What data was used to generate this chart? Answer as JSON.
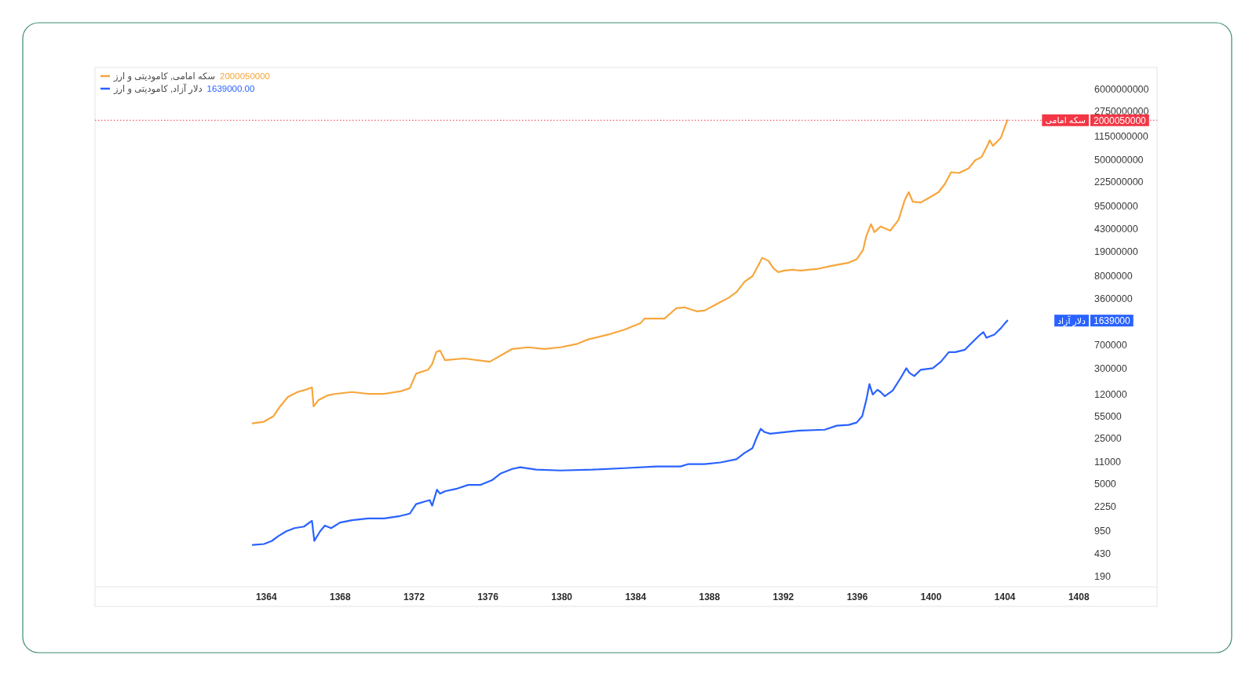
{
  "chart_data": {
    "type": "line",
    "log": "y",
    "legend": "top left",
    "xlim": [
      1354.72,
      1412.24
    ],
    "ylim": [
      130,
      13000000000
    ],
    "xticks": [
      1364,
      1368,
      1372,
      1376,
      1380,
      1384,
      1388,
      1392,
      1396,
      1400,
      1404,
      1408
    ],
    "yticks": [
      190,
      430,
      950,
      2250,
      5000,
      11000,
      25000,
      55000,
      120000,
      300000,
      700000,
      3600000,
      8000000,
      19000000,
      43000000,
      95000000,
      225000000,
      500000000,
      1150000000,
      2750000000,
      6000000000
    ],
    "series": [
      {
        "name": "سکه امامی, کامودیتی و ارز",
        "color": "#f7a63c",
        "x": [
          1363.26,
          1363.87,
          1364.39,
          1364.74,
          1365.17,
          1365.69,
          1366.26,
          1366.47,
          1366.56,
          1366.82,
          1367.34,
          1367.77,
          1368.64,
          1369.51,
          1370.38,
          1371.24,
          1371.77,
          1372.11,
          1372.76,
          1372.98,
          1373.2,
          1373.41,
          1373.67,
          1374.71,
          1376.1,
          1377.32,
          1378.19,
          1379.05,
          1379.92,
          1380.79,
          1381.44,
          1382.52,
          1383.39,
          1384.26,
          1384.48,
          1385.56,
          1386.21,
          1386.64,
          1387.3,
          1387.73,
          1388.38,
          1389.03,
          1389.46,
          1389.9,
          1390.33,
          1390.68,
          1390.85,
          1391.2,
          1391.46,
          1391.72,
          1392.07,
          1392.5,
          1392.93,
          1393.8,
          1394.67,
          1395.54,
          1395.97,
          1396.32,
          1396.49,
          1396.75,
          1396.93,
          1397.27,
          1397.79,
          1398.23,
          1398.57,
          1398.79,
          1399.01,
          1399.44,
          1399.96,
          1400.4,
          1400.74,
          1401.09,
          1401.52,
          1402.04,
          1402.39,
          1402.74,
          1403.09,
          1403.17,
          1403.35,
          1403.78,
          1404.0,
          1404.13
        ],
        "values": [
          42900,
          45400,
          55300,
          77800,
          109000,
          130000,
          145000,
          154000,
          77800,
          97500,
          116000,
          122000,
          130000,
          122000,
          122000,
          133000,
          149000,
          249000,
          287000,
          350000,
          536000,
          566000,
          403000,
          427000,
          381000,
          600000,
          635000,
          600000,
          635000,
          711000,
          843000,
          1000000,
          1190000,
          1490000,
          1760000,
          1760000,
          2550000,
          2620000,
          2280000,
          2340000,
          2940000,
          3680000,
          4500000,
          6500000,
          7930000,
          12100000,
          15200000,
          13600000,
          10500000,
          9140000,
          9660000,
          9950000,
          9660000,
          10200000,
          11500000,
          12800000,
          14400000,
          20200000,
          32700000,
          50100000,
          37800000,
          46000000,
          39900000,
          57700000,
          117000000,
          156000000,
          111000000,
          108000000,
          131000000,
          156000000,
          207000000,
          317000000,
          308000000,
          365000000,
          484000000,
          543000000,
          855000000,
          984000000,
          807000000,
          1070000000,
          1600000000,
          2000050000
        ]
      },
      {
        "name": "دلار آزاد, کامودیتی و ارز",
        "color": "#2962ff",
        "x": [
          1363.26,
          1363.87,
          1364.3,
          1364.65,
          1365.08,
          1365.52,
          1366.04,
          1366.47,
          1366.6,
          1366.91,
          1367.17,
          1367.51,
          1367.99,
          1368.64,
          1369.51,
          1370.38,
          1371.24,
          1371.77,
          1372.11,
          1372.55,
          1372.85,
          1372.98,
          1373.24,
          1373.41,
          1373.67,
          1374.28,
          1374.93,
          1375.58,
          1376.23,
          1376.67,
          1377.32,
          1377.75,
          1378.62,
          1379.92,
          1381.66,
          1383.39,
          1385.13,
          1386.43,
          1386.86,
          1387.73,
          1388.6,
          1389.46,
          1389.9,
          1390.33,
          1390.55,
          1390.77,
          1390.98,
          1391.29,
          1392.07,
          1392.93,
          1394.24,
          1394.89,
          1395.54,
          1395.97,
          1396.27,
          1396.49,
          1396.66,
          1396.84,
          1397.1,
          1397.27,
          1397.49,
          1397.92,
          1398.36,
          1398.66,
          1398.83,
          1399.09,
          1399.44,
          1400.09,
          1400.53,
          1400.96,
          1401.31,
          1401.83,
          1402.13,
          1402.57,
          1402.83,
          1403.0,
          1403.43,
          1403.78,
          1404.0,
          1404.13
        ],
        "values": [
          574,
          592,
          662,
          785,
          931,
          1040,
          1100,
          1350,
          662,
          931,
          1140,
          1040,
          1270,
          1380,
          1470,
          1470,
          1600,
          1740,
          2440,
          2660,
          2810,
          2310,
          4070,
          3530,
          3850,
          4190,
          4820,
          4820,
          5710,
          7180,
          8510,
          9020,
          8280,
          8040,
          8280,
          8750,
          9270,
          9270,
          10100,
          10100,
          10700,
          12000,
          15000,
          17800,
          25700,
          35200,
          31400,
          29600,
          31400,
          33200,
          34200,
          39400,
          40500,
          44100,
          55300,
          97500,
          172000,
          119000,
          141000,
          130000,
          112000,
          137000,
          216000,
          303000,
          256000,
          229000,
          287000,
          303000,
          381000,
          536000,
          536000,
          583000,
          711000,
          944000,
          1090000,
          891000,
          1000000,
          1250000,
          1490000,
          1639000
        ]
      }
    ],
    "ref_lines": [
      {
        "axis": "y",
        "value": 2000050000,
        "color": "#f23645",
        "line_style": "dotted"
      }
    ],
    "annotations": [
      "2000050000",
      "1639000.00",
      "سکه امامی",
      "2000050000",
      "دلار آزاد",
      "1639000"
    ]
  }
}
